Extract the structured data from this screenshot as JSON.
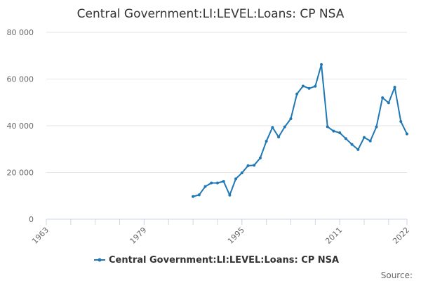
{
  "chart_data": {
    "type": "line",
    "title": "Central Government:LI:LEVEL:Loans: CP NSA",
    "xlabel": "",
    "ylabel": "",
    "xlim": [
      1963,
      2022
    ],
    "ylim": [
      0,
      80000
    ],
    "x_ticks": [
      {
        "value": 1963,
        "label": "1963"
      },
      {
        "value": 1979,
        "label": "1979"
      },
      {
        "value": 1995,
        "label": "1995"
      },
      {
        "value": 2011,
        "label": "2011"
      },
      {
        "value": 2022,
        "label": "2022"
      }
    ],
    "y_ticks": [
      {
        "value": 0,
        "label": "0"
      },
      {
        "value": 20000,
        "label": "20 000"
      },
      {
        "value": 40000,
        "label": "40 000"
      },
      {
        "value": 60000,
        "label": "60 000"
      },
      {
        "value": 80000,
        "label": "80 000"
      }
    ],
    "grid": "horizontal",
    "legend_position": "bottom",
    "color": "#1f77b4",
    "series": [
      {
        "name": "Central Government:LI:LEVEL:Loans: CP NSA",
        "x": [
          1987,
          1988,
          1989,
          1990,
          1991,
          1992,
          1993,
          1994,
          1995,
          1996,
          1997,
          1998,
          1999,
          2000,
          2001,
          2002,
          2003,
          2004,
          2005,
          2006,
          2007,
          2008,
          2009,
          2010,
          2011,
          2012,
          2013,
          2014,
          2015,
          2016,
          2017,
          2018,
          2019,
          2020,
          2021,
          2022
        ],
        "values": [
          9700,
          10400,
          14000,
          15500,
          15500,
          16200,
          10300,
          17300,
          19800,
          22900,
          23100,
          26200,
          33400,
          39300,
          35200,
          39500,
          43000,
          53600,
          57000,
          56000,
          56900,
          66200,
          39600,
          37700,
          37000,
          34500,
          32000,
          29800,
          35000,
          33500,
          39500,
          52000,
          49800,
          56500,
          41800,
          36500
        ]
      }
    ],
    "credit": "Source:"
  }
}
